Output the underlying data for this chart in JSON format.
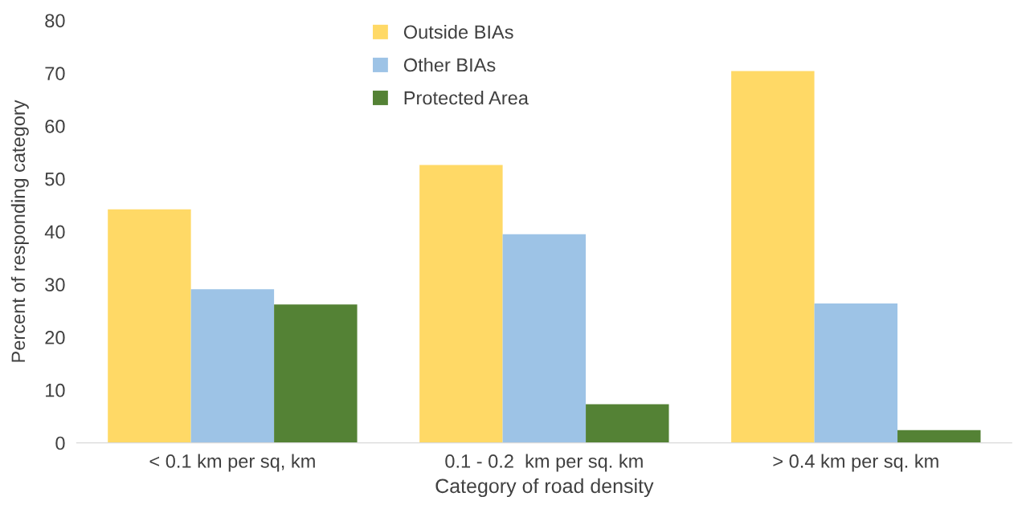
{
  "chart_data": {
    "type": "bar",
    "xlabel": "Category of road density",
    "ylabel": "Percent of responding category",
    "categories": [
      "< 0.1 km per sq, km",
      "0.1 - 0.2  km per sq. km",
      "> 0.4 km per sq. km"
    ],
    "series": [
      {
        "name": "Outside BIAs",
        "color": "#ffd966",
        "values": [
          44.2,
          52.6,
          70.4
        ]
      },
      {
        "name": "Other BIAs",
        "color": "#9dc3e6",
        "values": [
          29.1,
          39.5,
          26.4
        ]
      },
      {
        "name": "Protected Area",
        "color": "#548235",
        "values": [
          26.2,
          7.3,
          2.4
        ]
      }
    ],
    "ylim": [
      0,
      80
    ],
    "yticks": [
      0,
      10,
      20,
      30,
      40,
      50,
      60,
      70,
      80
    ],
    "grid": false,
    "legend": "top"
  }
}
